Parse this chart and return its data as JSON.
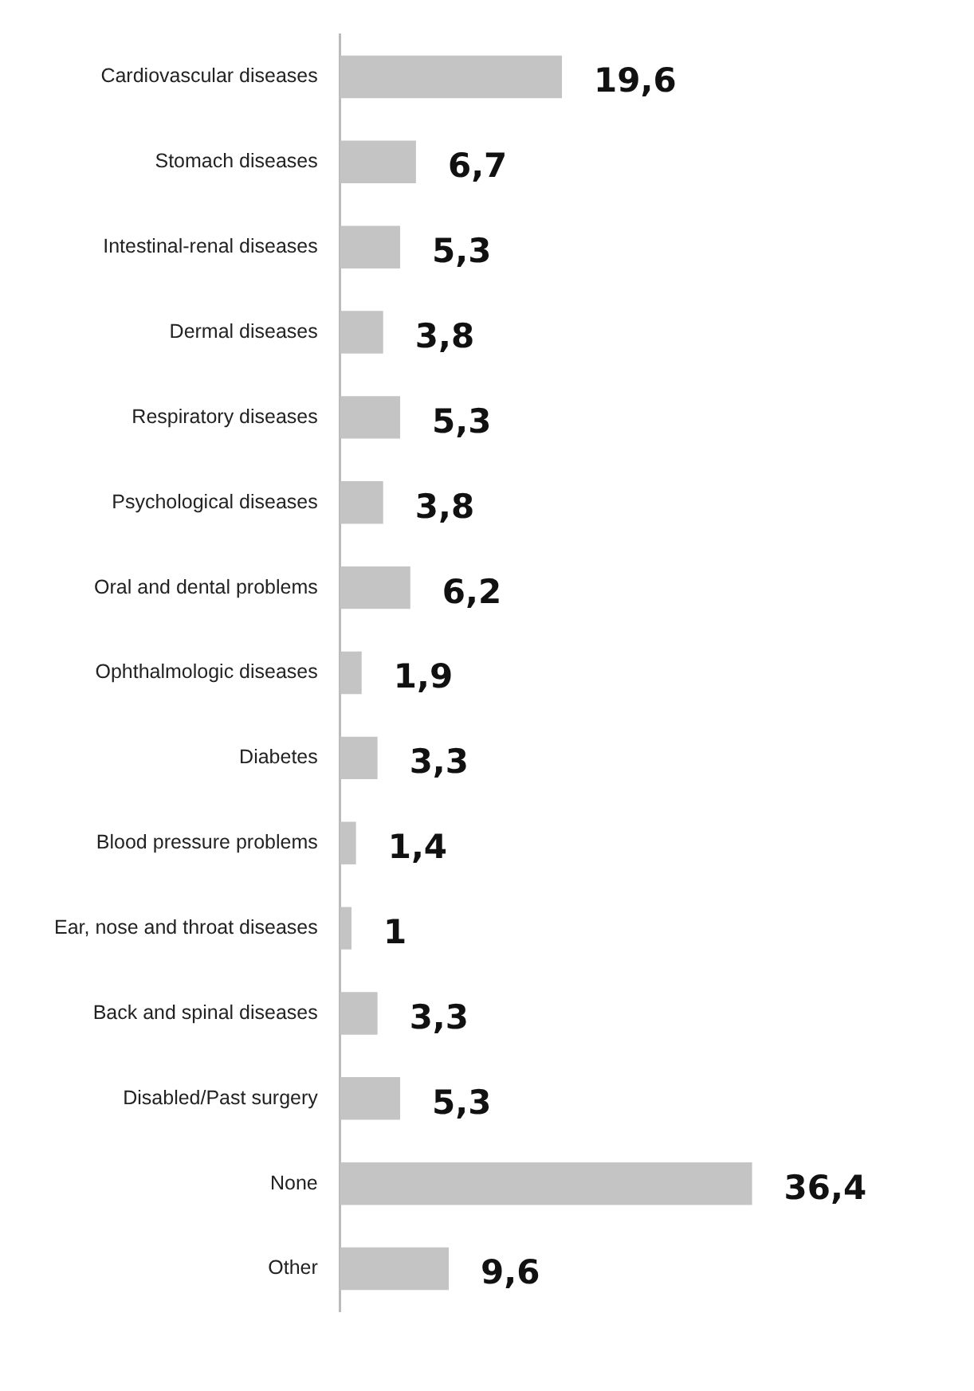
{
  "chart_data": {
    "type": "bar",
    "orientation": "horizontal",
    "categories": [
      "Cardiovascular diseases",
      "Stomach diseases",
      "Intestinal-renal diseases",
      "Dermal diseases",
      "Respiratory diseases",
      "Psychological diseases",
      "Oral and dental problems",
      "Ophthalmologic diseases",
      "Diabetes",
      "Blood pressure problems",
      "Ear, nose and throat diseases",
      "Back and spinal diseases",
      "Disabled/Past surgery",
      "None",
      "Other"
    ],
    "values": [
      19.6,
      6.7,
      5.3,
      3.8,
      5.3,
      3.8,
      6.2,
      1.9,
      3.3,
      1.4,
      1,
      3.3,
      5.3,
      36.4,
      9.6
    ],
    "value_labels": [
      "19,6",
      "6,7",
      "5,3",
      "3,8",
      "5,3",
      "3,8",
      "6,2",
      "1,9",
      "3,3",
      "1,4",
      "1",
      "3,3",
      "5,3",
      "36,4",
      "9,6"
    ],
    "color": "#c4c4c4",
    "grid": false,
    "legend": false
  }
}
